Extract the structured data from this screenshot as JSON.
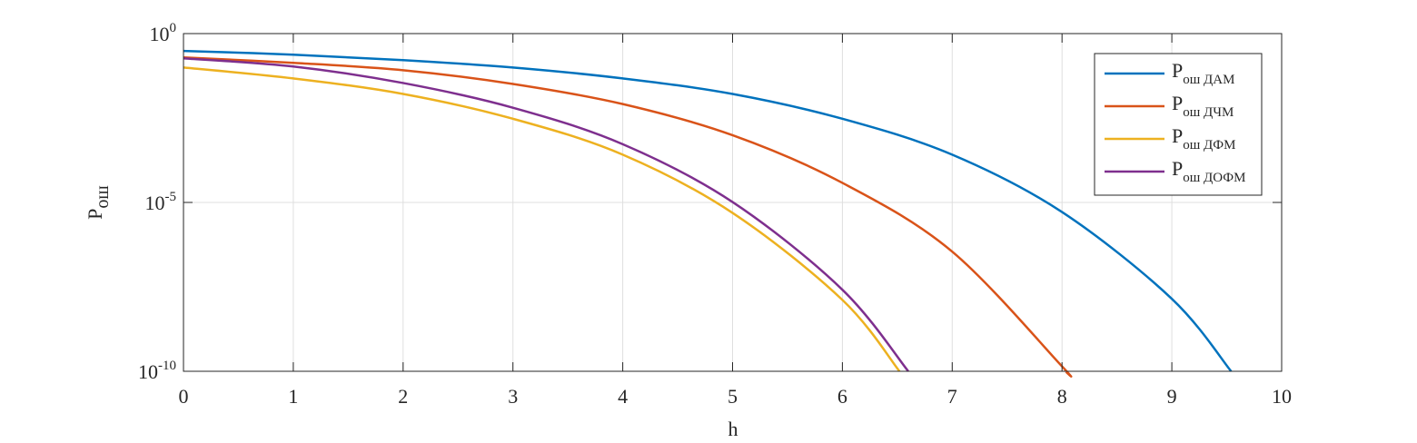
{
  "chart_data": {
    "type": "line",
    "xlabel": "h",
    "ylabel": "Pош",
    "xlim": [
      0,
      10
    ],
    "xticks": [
      0,
      1,
      2,
      3,
      4,
      5,
      6,
      7,
      8,
      9,
      10
    ],
    "ylim": [
      1e-10,
      1
    ],
    "yscale": "log",
    "yticks": [
      {
        "value": 1e-10,
        "label": "10^-10"
      },
      {
        "value": 1e-05,
        "label": "10^-5"
      },
      {
        "value": 1,
        "label": "10^0"
      }
    ],
    "grid": true,
    "legend": "upper right",
    "series": [
      {
        "name": "Pош ДАМ",
        "color": "#0072bd",
        "x": [
          0,
          1,
          2,
          3,
          4,
          5,
          6,
          7,
          8,
          9,
          9.54
        ],
        "values": [
          0.306,
          0.238,
          0.164,
          0.099,
          0.047,
          0.0163,
          0.003,
          0.00026,
          5.2e-06,
          1.4e-08,
          1e-10
        ]
      },
      {
        "name": "Pош ДЧМ",
        "color": "#d95319",
        "x": [
          0,
          1,
          2,
          3,
          4,
          5,
          6,
          7,
          8,
          8.03
        ],
        "values": [
          0.197,
          0.136,
          0.0824,
          0.0323,
          0.00819,
          0.00098,
          3.8e-05,
          3.5e-07,
          1.4e-10,
          1e-10
        ]
      },
      {
        "name": "Pош ДФМ",
        "color": "#edb120",
        "x": [
          0,
          1,
          2,
          3,
          4,
          5,
          6,
          6.52
        ],
        "values": [
          0.099,
          0.047,
          0.0163,
          0.003,
          0.00026,
          4.9e-06,
          1.3e-08,
          1e-10
        ]
      },
      {
        "name": "Pош ДОФМ",
        "color": "#7e2f8e",
        "x": [
          0,
          1,
          2,
          3,
          4,
          5,
          6,
          6.6
        ],
        "values": [
          0.185,
          0.106,
          0.0344,
          0.00638,
          0.00053,
          1.03e-05,
          2.6e-08,
          1e-10
        ]
      }
    ]
  }
}
